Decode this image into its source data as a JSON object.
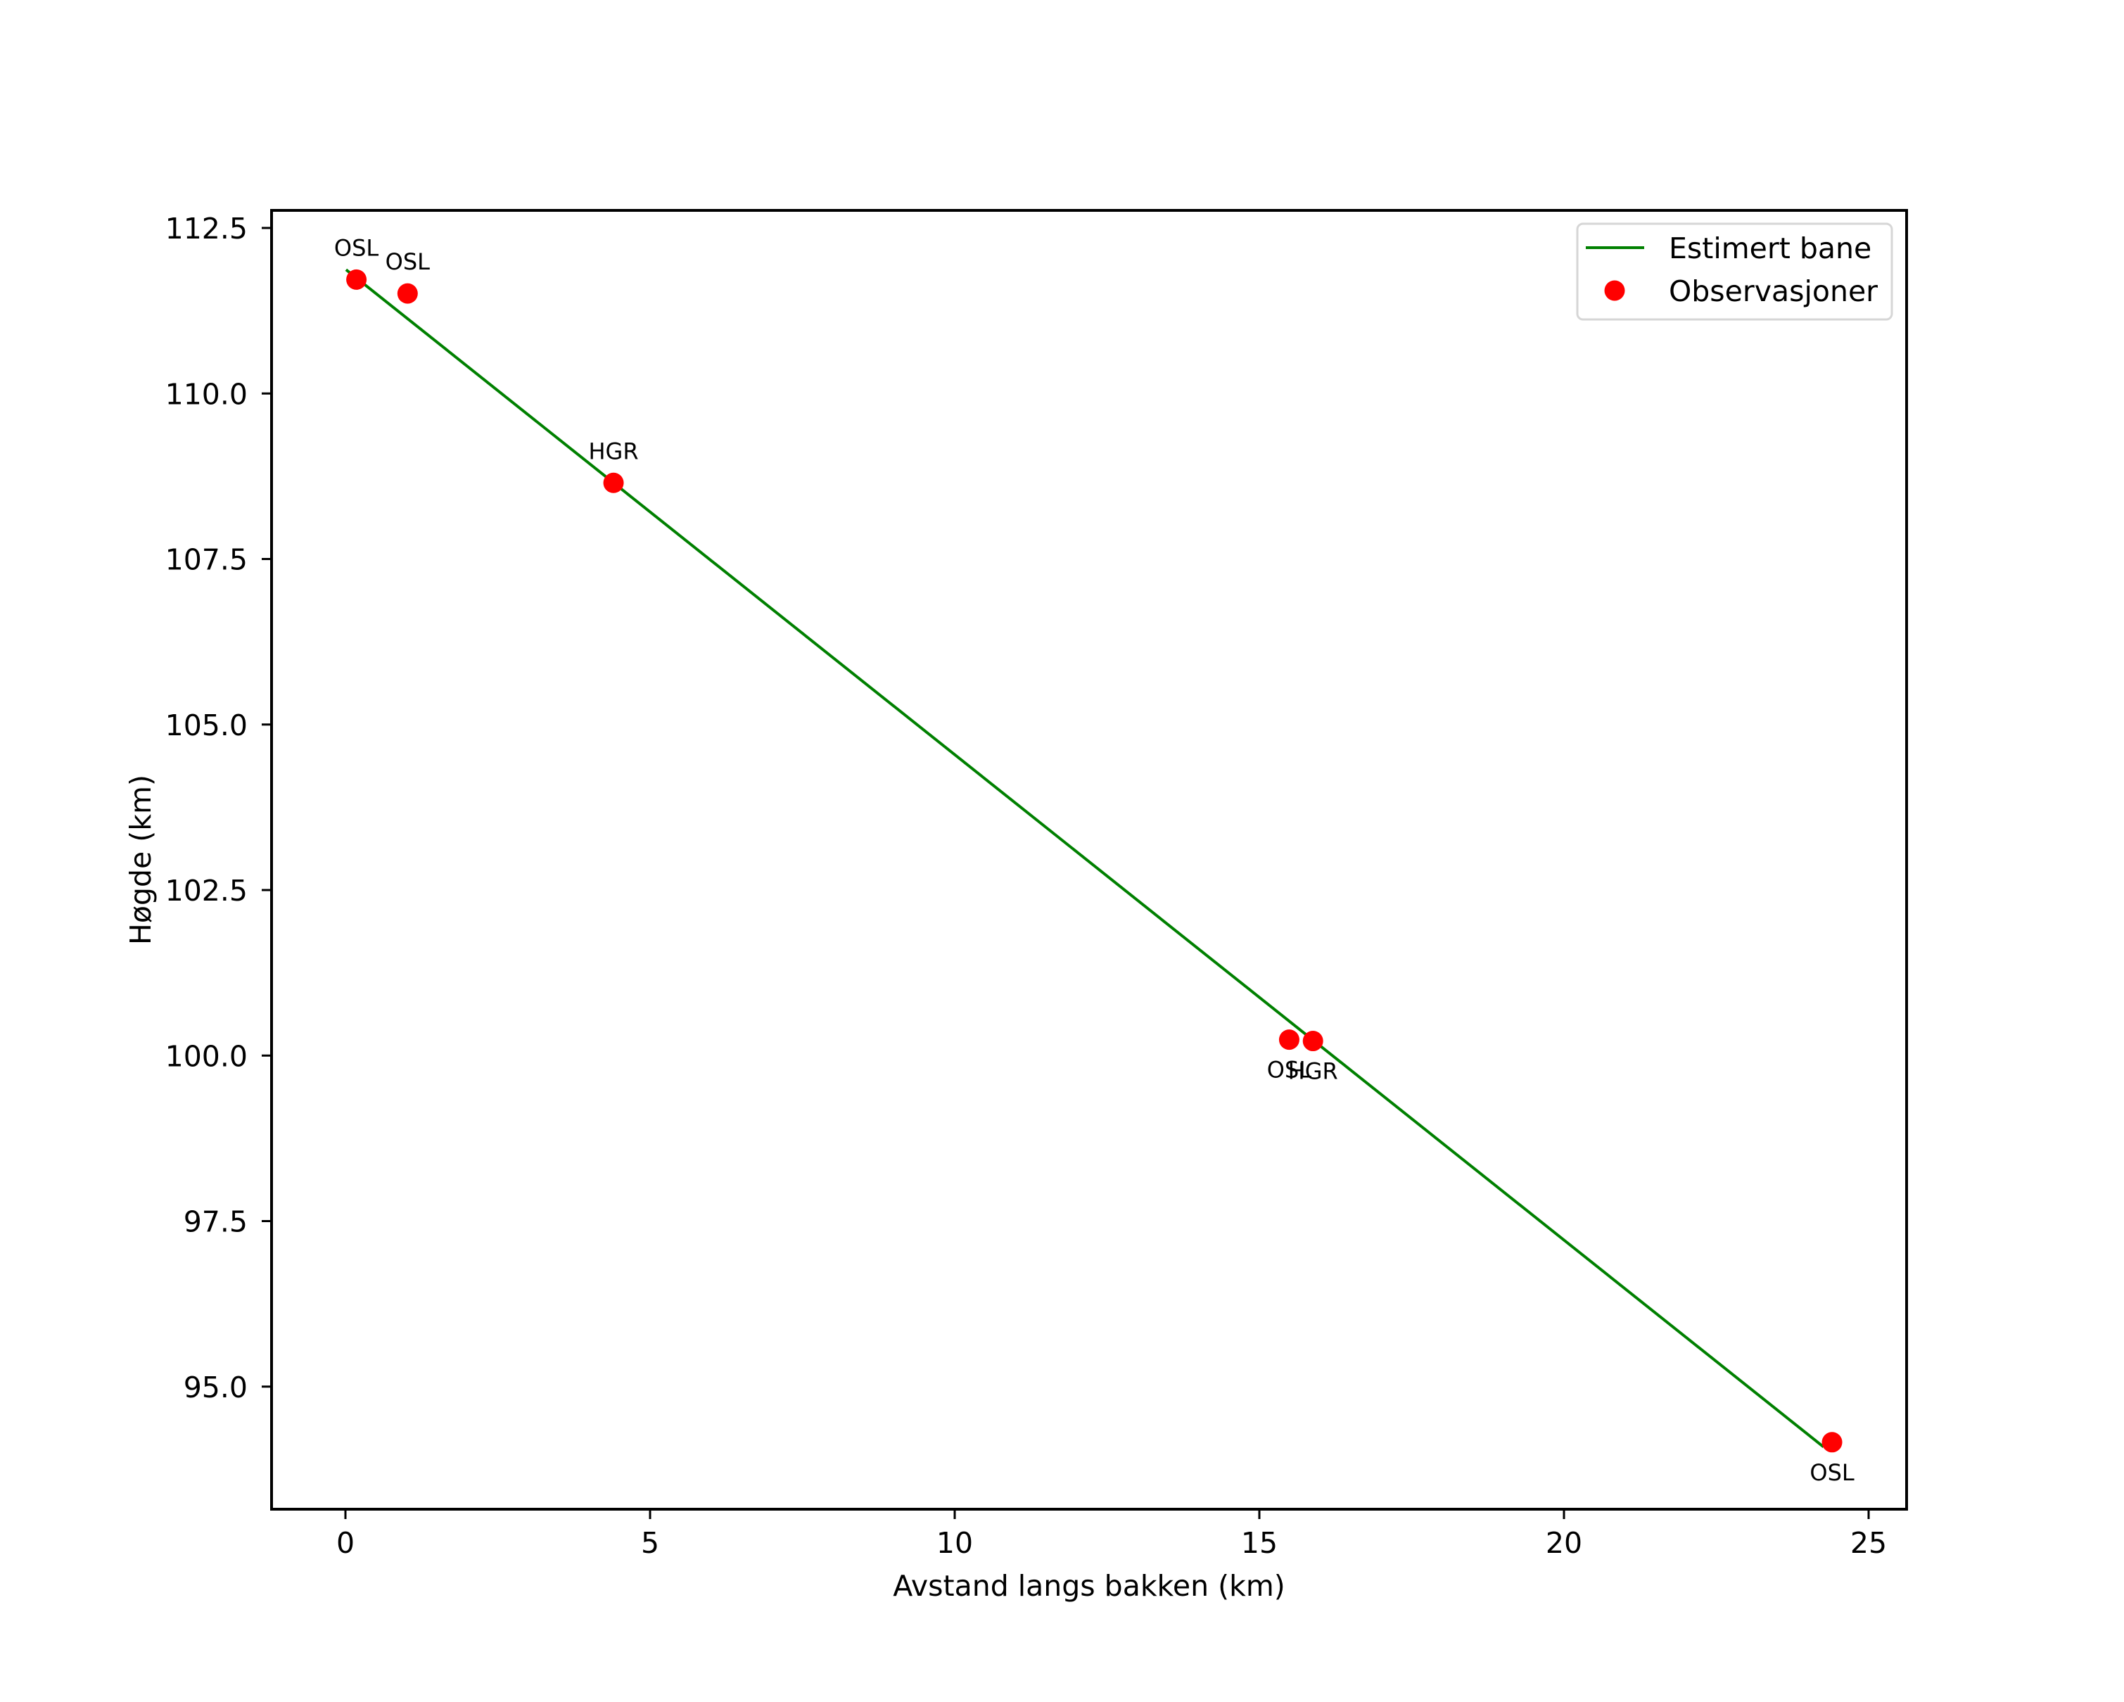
{
  "chart_data": {
    "type": "line",
    "title": "",
    "xlabel": "Avstand langs bakken (km)",
    "ylabel": "Høgde (km)",
    "xlim": [
      -1.22,
      25.6
    ],
    "ylim": [
      93.2,
      112.79
    ],
    "grid": false,
    "legend_position": "upper right",
    "xticks": [
      0,
      5,
      10,
      15,
      20,
      25
    ],
    "xtick_labels": [
      "0",
      "5",
      "10",
      "15",
      "20",
      "25"
    ],
    "yticks": [
      95.0,
      97.5,
      100.0,
      102.5,
      105.0,
      107.5,
      110.0,
      112.5
    ],
    "ytick_labels": [
      "95.0",
      "97.5",
      "100.0",
      "102.5",
      "105.0",
      "107.5",
      "110.0",
      "112.5"
    ],
    "series": [
      {
        "name": "Estimert bane",
        "kind": "line",
        "color": "#008000",
        "x": [
          0.01,
          24.26
        ],
        "y": [
          111.87,
          94.09
        ]
      },
      {
        "name": "Observasjoner",
        "kind": "scatter",
        "color": "#ff0000",
        "x": [
          0.18,
          1.02,
          4.4,
          15.49,
          15.88,
          24.4
        ],
        "y": [
          111.72,
          111.51,
          108.65,
          100.24,
          100.22,
          94.16
        ],
        "labels": [
          "OSL",
          "OSL",
          "HGR",
          "OSL",
          "HGR",
          "OSL"
        ],
        "label_positions": [
          "above",
          "above",
          "above",
          "below",
          "below",
          "below"
        ]
      }
    ]
  },
  "legend": {
    "items": [
      {
        "label": "Estimert bane",
        "symbol": "line",
        "color": "#008000"
      },
      {
        "label": "Observasjoner",
        "symbol": "dot",
        "color": "#ff0000"
      }
    ]
  }
}
